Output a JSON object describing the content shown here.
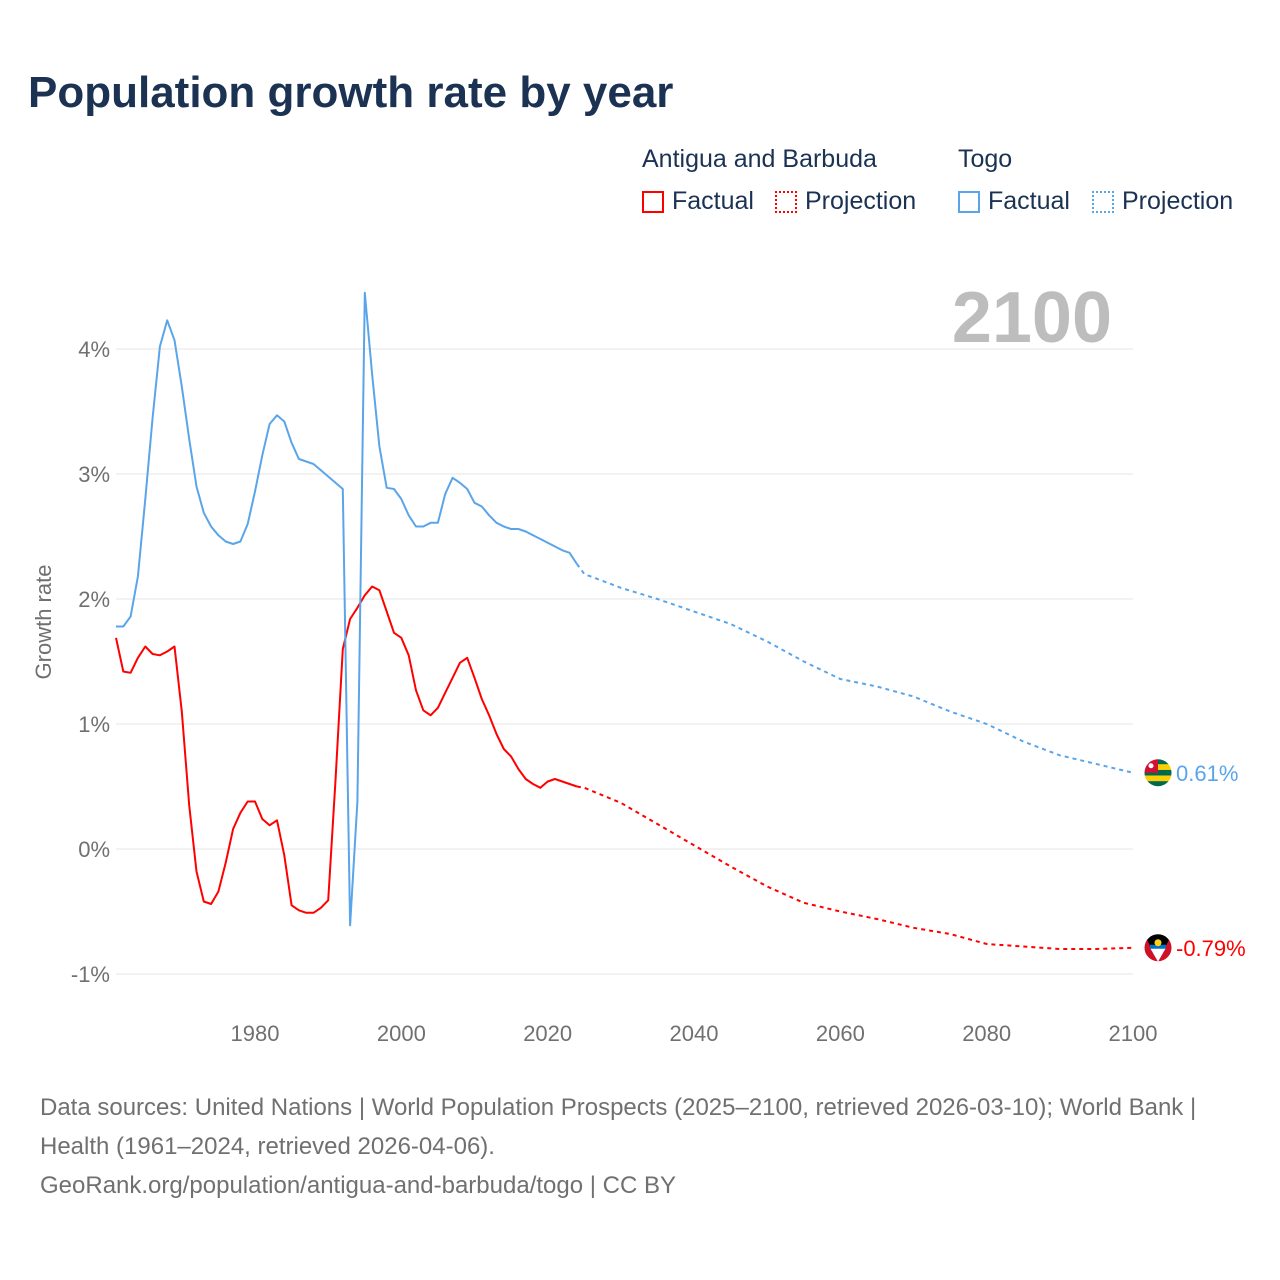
{
  "title": "Population growth rate by year",
  "legend": {
    "groups": [
      {
        "name": "Antigua and Barbuda",
        "color": "#ff0000",
        "items": [
          "Factual",
          "Projection"
        ]
      },
      {
        "name": "Togo",
        "color": "#5aa5ea",
        "items": [
          "Factual",
          "Projection"
        ]
      }
    ]
  },
  "year_watermark": "2100",
  "footer": {
    "sources": "Data sources: United Nations | World Population Prospects (2025–2100, retrieved 2026-03-10); World Bank | Health (1961–2024, retrieved 2026-04-06).",
    "link": "GeoRank.org/population/antigua-and-barbuda/togo | CC BY"
  },
  "chart_data": {
    "type": "line",
    "title": "Population growth rate by year",
    "xlabel": "",
    "ylabel": "Growth rate",
    "xlim": [
      1961,
      2100
    ],
    "ylim": [
      -1.1,
      4.5
    ],
    "x_ticks": [
      1980,
      2000,
      2020,
      2040,
      2060,
      2080,
      2100
    ],
    "y_ticks": [
      {
        "v": -1,
        "label": "-1%"
      },
      {
        "v": 0,
        "label": "0%"
      },
      {
        "v": 1,
        "label": "1%"
      },
      {
        "v": 2,
        "label": "2%"
      },
      {
        "v": 3,
        "label": "3%"
      },
      {
        "v": 4,
        "label": "4%"
      }
    ],
    "grid": true,
    "series": [
      {
        "name": "Antigua and Barbuda",
        "color": "#ff0000",
        "end_label": "-0.79%",
        "factual": {
          "x": [
            1961,
            1962,
            1963,
            1964,
            1965,
            1966,
            1967,
            1968,
            1969,
            1970,
            1971,
            1972,
            1973,
            1974,
            1975,
            1976,
            1977,
            1978,
            1979,
            1980,
            1981,
            1982,
            1983,
            1984,
            1985,
            1986,
            1987,
            1988,
            1989,
            1990,
            1991,
            1992,
            1993,
            1994,
            1995,
            1996,
            1997,
            1998,
            1999,
            2000,
            2001,
            2002,
            2003,
            2004,
            2005,
            2006,
            2007,
            2008,
            2009,
            2010,
            2011,
            2012,
            2013,
            2014,
            2015,
            2016,
            2017,
            2018,
            2019,
            2020,
            2021,
            2022,
            2023,
            2024
          ],
          "y": [
            1.69,
            1.42,
            1.41,
            1.53,
            1.62,
            1.56,
            1.55,
            1.58,
            1.62,
            1.1,
            0.35,
            -0.18,
            -0.42,
            -0.44,
            -0.34,
            -0.11,
            0.16,
            0.29,
            0.38,
            0.38,
            0.24,
            0.19,
            0.23,
            -0.05,
            -0.45,
            -0.49,
            -0.51,
            -0.51,
            -0.47,
            -0.41,
            0.55,
            1.6,
            1.84,
            1.93,
            2.03,
            2.1,
            2.07,
            1.9,
            1.73,
            1.69,
            1.55,
            1.27,
            1.11,
            1.07,
            1.13,
            1.25,
            1.37,
            1.49,
            1.53,
            1.37,
            1.2,
            1.07,
            0.92,
            0.8,
            0.74,
            0.64,
            0.56,
            0.52,
            0.49,
            0.54,
            0.56,
            0.54,
            0.52,
            0.5
          ]
        },
        "projection": {
          "x": [
            2024,
            2025,
            2030,
            2035,
            2040,
            2045,
            2050,
            2055,
            2060,
            2065,
            2070,
            2075,
            2080,
            2085,
            2090,
            2095,
            2100
          ],
          "y": [
            0.5,
            0.49,
            0.37,
            0.2,
            0.03,
            -0.14,
            -0.3,
            -0.43,
            -0.5,
            -0.56,
            -0.63,
            -0.68,
            -0.76,
            -0.78,
            -0.8,
            -0.8,
            -0.79
          ]
        }
      },
      {
        "name": "Togo",
        "color": "#5aa5ea",
        "end_label": "0.61%",
        "factual": {
          "x": [
            1961,
            1962,
            1963,
            1964,
            1965,
            1966,
            1967,
            1968,
            1969,
            1970,
            1971,
            1972,
            1973,
            1974,
            1975,
            1976,
            1977,
            1978,
            1979,
            1980,
            1981,
            1982,
            1983,
            1984,
            1985,
            1986,
            1987,
            1988,
            1989,
            1990,
            1991,
            1992,
            1993,
            1994,
            1995,
            1996,
            1997,
            1998,
            1999,
            2000,
            2001,
            2002,
            2003,
            2004,
            2005,
            2006,
            2007,
            2008,
            2009,
            2010,
            2011,
            2012,
            2013,
            2014,
            2015,
            2016,
            2017,
            2018,
            2019,
            2020,
            2021,
            2022,
            2023,
            2024
          ],
          "y": [
            1.78,
            1.78,
            1.86,
            2.18,
            2.8,
            3.45,
            4.02,
            4.23,
            4.07,
            3.7,
            3.28,
            2.9,
            2.69,
            2.58,
            2.51,
            2.46,
            2.44,
            2.46,
            2.6,
            2.86,
            3.15,
            3.4,
            3.47,
            3.42,
            3.25,
            3.12,
            3.1,
            3.08,
            3.03,
            2.98,
            2.93,
            2.88,
            -0.61,
            0.38,
            4.45,
            3.8,
            3.22,
            2.89,
            2.88,
            2.8,
            2.67,
            2.58,
            2.58,
            2.61,
            2.61,
            2.84,
            2.97,
            2.93,
            2.88,
            2.77,
            2.74,
            2.67,
            2.61,
            2.58,
            2.56,
            2.56,
            2.54,
            2.51,
            2.48,
            2.45,
            2.42,
            2.39,
            2.37,
            2.28
          ]
        },
        "projection": {
          "x": [
            2024,
            2025,
            2030,
            2035,
            2040,
            2045,
            2050,
            2055,
            2060,
            2065,
            2070,
            2075,
            2080,
            2085,
            2090,
            2095,
            2100
          ],
          "y": [
            2.28,
            2.2,
            2.09,
            2.0,
            1.9,
            1.8,
            1.66,
            1.5,
            1.36,
            1.3,
            1.22,
            1.1,
            1.0,
            0.86,
            0.75,
            0.68,
            0.61
          ]
        }
      }
    ]
  }
}
